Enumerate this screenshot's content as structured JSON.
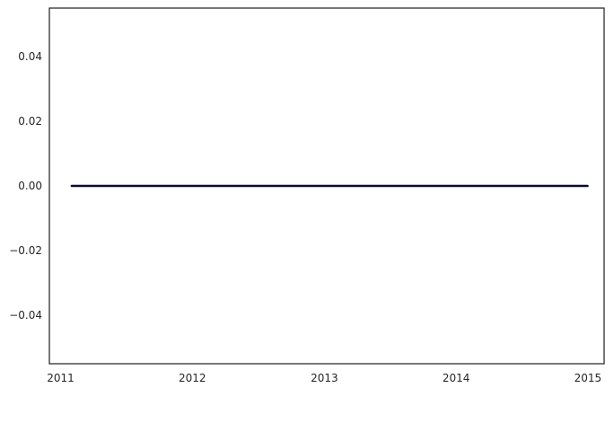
{
  "chart_data": {
    "type": "line",
    "title": "",
    "xlabel": "",
    "ylabel": "",
    "x": [
      "2011-02-01",
      "2014-12-31"
    ],
    "series": [
      {
        "values": [
          0.0,
          0.0
        ],
        "color": "#0a0a2e"
      }
    ],
    "xlim": [
      "2010-12-01",
      "2015-02-15"
    ],
    "ylim": [
      -0.055,
      0.055
    ],
    "xticks": [
      "2011",
      "2012",
      "2013",
      "2014",
      "2015"
    ],
    "xtick_dates": [
      "2011-01-01",
      "2012-01-01",
      "2013-01-01",
      "2014-01-01",
      "2015-01-01"
    ],
    "yticks": [
      -0.04,
      -0.02,
      0.0,
      0.02,
      0.04
    ],
    "ytick_labels": [
      "−0.04",
      "−0.02",
      "0.00",
      "0.02",
      "0.04"
    ],
    "grid": false,
    "legend": "none",
    "frame_color": "#262626",
    "background": "#ffffff"
  }
}
